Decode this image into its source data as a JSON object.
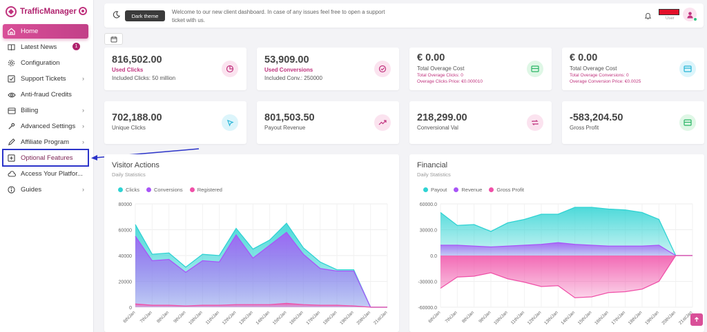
{
  "brand": {
    "name": "TrafficManager"
  },
  "sidebar": {
    "items": [
      {
        "label": "Home",
        "icon": "home-icon"
      },
      {
        "label": "Latest News",
        "icon": "book-icon",
        "badge": "1"
      },
      {
        "label": "Configuration",
        "icon": "gear-icon"
      },
      {
        "label": "Support Tickets",
        "icon": "checkbox-icon"
      },
      {
        "label": "Anti-fraud Credits",
        "icon": "eye-icon"
      },
      {
        "label": "Billing",
        "icon": "card-icon"
      },
      {
        "label": "Advanced Settings",
        "icon": "wrench-icon"
      },
      {
        "label": "Affiliate Program",
        "icon": "pen-icon"
      },
      {
        "label": "Optional Features",
        "icon": "plus-square-icon"
      },
      {
        "label": "Access Your Platfor...",
        "icon": "cloud-icon"
      },
      {
        "label": "Guides",
        "icon": "info-icon"
      }
    ]
  },
  "topbar": {
    "dark_theme_label": "Dark theme",
    "welcome": "Welcome to our new client dashboard. In case of any issues feel free to open a support ticket with us.",
    "user_label": "User"
  },
  "cards_row1": [
    {
      "value": "816,502.00",
      "title": "Used Clicks",
      "sub": "Included Clicks: 50 million"
    },
    {
      "value": "53,909.00",
      "title": "Used Conversions",
      "sub": "Included Conv.: 250000"
    },
    {
      "value": "€ 0.00",
      "sub": "Total Overage Cost",
      "line1": "Total Overage Clicks: 0",
      "line2": "Overage Clicks Price: €0.000010"
    },
    {
      "value": "€ 0.00",
      "sub": "Total Overage Cost",
      "line1": "Total Overage Conversions: 0",
      "line2": "Overage Conversion Price: €0.0025"
    }
  ],
  "cards_row2": [
    {
      "value": "702,188.00",
      "sub": "Unique Clicks"
    },
    {
      "value": "801,503.50",
      "sub": "Payout Revenue"
    },
    {
      "value": "218,299.00",
      "sub": "Conversional Val"
    },
    {
      "value": "-583,204.50",
      "sub": "Gross Profit"
    }
  ],
  "visitor_chart": {
    "title": "Visitor Actions",
    "subtitle": "Daily Statistics",
    "legend": [
      "Clicks",
      "Conversions",
      "Registered"
    ],
    "y_ticks": [
      "80000",
      "60000",
      "40000",
      "20000",
      "0"
    ],
    "x_ticks": [
      "6th/Jan",
      "7th/Jan",
      "8th/Jan",
      "9th/Jan",
      "10th/Jan",
      "11th/Jan",
      "12th/Jan",
      "13th/Jan",
      "14th/Jan",
      "15th/Jan",
      "16th/Jan",
      "17th/Jan",
      "18th/Jan",
      "19th/Jan",
      "20th/Jan",
      "21st/Jan"
    ]
  },
  "financial_chart": {
    "title": "Financial",
    "subtitle": "Daily Statistics",
    "legend": [
      "Payout",
      "Revenue",
      "Gross Profit"
    ],
    "y_ticks": [
      "60000.0",
      "30000.0",
      "0.0",
      "-30000.0",
      "-60000.0"
    ],
    "x_ticks": [
      "6th/Jan",
      "7th/Jan",
      "8th/Jan",
      "9th/Jan",
      "10th/Jan",
      "11th/Jan",
      "12th/Jan",
      "13th/Jan",
      "14th/Jan",
      "15th/Jan",
      "16th/Jan",
      "17th/Jan",
      "18th/Jan",
      "19th/Jan",
      "20th/Jan",
      "21st/Jan"
    ]
  },
  "colors": {
    "accent": "#c0337e",
    "cyan": "#2fd3d3",
    "purple": "#a855f7",
    "pink": "#f050a8",
    "annotation": "#2b33c9"
  },
  "chart_data": [
    {
      "type": "area",
      "title": "Visitor Actions",
      "x": [
        "6th/Jan",
        "7th/Jan",
        "8th/Jan",
        "9th/Jan",
        "10th/Jan",
        "11th/Jan",
        "12th/Jan",
        "13th/Jan",
        "14th/Jan",
        "15th/Jan",
        "16th/Jan",
        "17th/Jan",
        "18th/Jan",
        "19th/Jan",
        "20th/Jan",
        "21st/Jan"
      ],
      "ylim": [
        0,
        80000
      ],
      "series": [
        {
          "name": "Clicks",
          "values": [
            64000,
            41000,
            42000,
            31000,
            41000,
            40000,
            61000,
            45000,
            52000,
            65000,
            46000,
            35000,
            29000,
            29000,
            0,
            0
          ]
        },
        {
          "name": "Conversions",
          "values": [
            55000,
            36000,
            37000,
            27000,
            36000,
            35000,
            56000,
            38000,
            48000,
            58000,
            41000,
            30000,
            28000,
            28000,
            0,
            0
          ]
        },
        {
          "name": "Registered",
          "values": [
            2500,
            1500,
            1500,
            1000,
            1500,
            1500,
            2000,
            2000,
            2000,
            3000,
            2000,
            1500,
            1500,
            1000,
            0,
            0
          ]
        }
      ]
    },
    {
      "type": "area",
      "title": "Financial",
      "x": [
        "6th/Jan",
        "7th/Jan",
        "8th/Jan",
        "9th/Jan",
        "10th/Jan",
        "11th/Jan",
        "12th/Jan",
        "13th/Jan",
        "14th/Jan",
        "15th/Jan",
        "16th/Jan",
        "17th/Jan",
        "18th/Jan",
        "19th/Jan",
        "20th/Jan",
        "21st/Jan"
      ],
      "ylim": [
        -60000,
        60000
      ],
      "series": [
        {
          "name": "Payout",
          "values": [
            50000,
            35000,
            36000,
            28000,
            38000,
            42000,
            48000,
            48000,
            56000,
            56000,
            54000,
            53000,
            50000,
            42000,
            0,
            0
          ]
        },
        {
          "name": "Revenue",
          "values": [
            12000,
            12000,
            11000,
            10000,
            11000,
            12000,
            13000,
            15000,
            13000,
            12000,
            11000,
            11000,
            11000,
            12000,
            0,
            0
          ]
        },
        {
          "name": "Gross Profit",
          "values": [
            -38000,
            -25000,
            -24000,
            -20000,
            -27000,
            -31000,
            -36000,
            -35000,
            -49000,
            -48000,
            -43000,
            -42000,
            -39000,
            -30000,
            0,
            0
          ]
        }
      ]
    }
  ]
}
